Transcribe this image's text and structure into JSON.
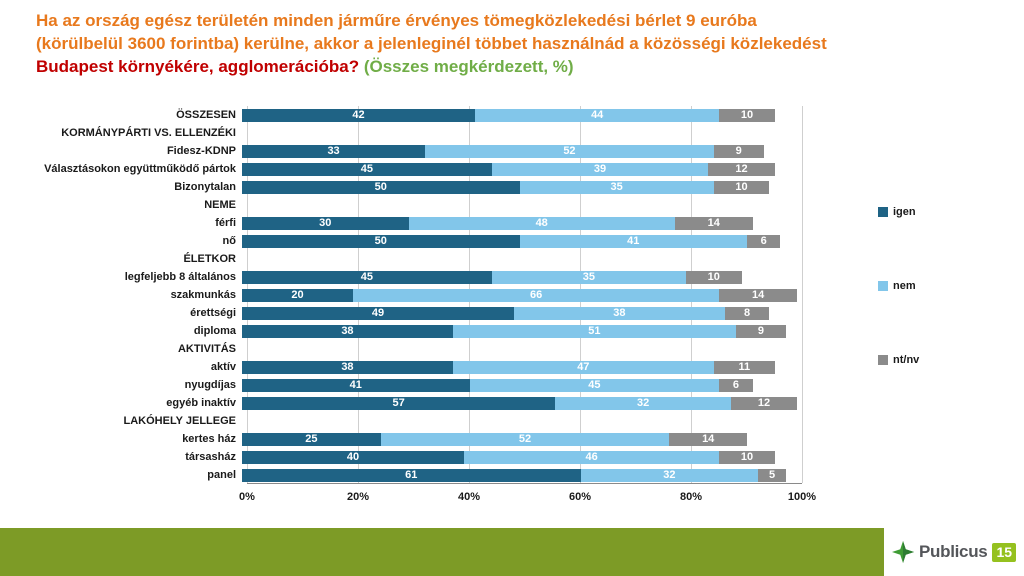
{
  "title": {
    "line1": "Ha az ország egész területén minden járműre érvényes tömegközlekedési bérlet 9 euróba",
    "line2": "(körülbelül 3600 forintba) kerülne, akkor a jelenleginél többet használnád a közösségi közlekedést",
    "highlight": "Budapest környékére, agglomerációba?",
    "note": " (Összes megkérdezett, %)"
  },
  "colors": {
    "title_orange": "#e8791d",
    "title_red": "#c00000",
    "title_green": "#70ad47",
    "footer_olive": "#7d9b26",
    "logo_green": "#95c11f"
  },
  "chart_data": {
    "type": "bar",
    "orientation": "horizontal",
    "stacked": true,
    "grid": true,
    "legend_position": "right",
    "xlim": [
      0,
      100
    ],
    "x_ticks": [
      "0%",
      "20%",
      "40%",
      "60%",
      "80%",
      "100%"
    ],
    "series_names": [
      "igen",
      "nem",
      "nt/nv"
    ],
    "series_colors": [
      "#1f6385",
      "#82c6ea",
      "#8b8b8b"
    ],
    "rows": [
      {
        "label": "ÖSSZESEN",
        "header": false,
        "values": [
          42,
          44,
          10
        ]
      },
      {
        "label": "KORMÁNYPÁRTI VS. ELLENZÉKI",
        "header": true
      },
      {
        "label": "Fidesz-KDNP",
        "header": false,
        "values": [
          33,
          52,
          9
        ]
      },
      {
        "label": "Választásokon együttműködő pártok",
        "header": false,
        "values": [
          45,
          39,
          12
        ]
      },
      {
        "label": "Bizonytalan",
        "header": false,
        "values": [
          50,
          35,
          10
        ]
      },
      {
        "label": "NEME",
        "header": true
      },
      {
        "label": "férfi",
        "header": false,
        "values": [
          30,
          48,
          14
        ]
      },
      {
        "label": "nő",
        "header": false,
        "values": [
          50,
          41,
          6
        ]
      },
      {
        "label": "ÉLETKOR",
        "header": true
      },
      {
        "label": "legfeljebb 8 általános",
        "header": false,
        "values": [
          45,
          35,
          10
        ]
      },
      {
        "label": "szakmunkás",
        "header": false,
        "values": [
          20,
          66,
          14
        ]
      },
      {
        "label": "érettségi",
        "header": false,
        "values": [
          49,
          38,
          8
        ]
      },
      {
        "label": "diploma",
        "header": false,
        "values": [
          38,
          51,
          9
        ]
      },
      {
        "label": "AKTIVITÁS",
        "header": true
      },
      {
        "label": "aktív",
        "header": false,
        "values": [
          38,
          47,
          11
        ]
      },
      {
        "label": "nyugdíjas",
        "header": false,
        "values": [
          41,
          45,
          6
        ]
      },
      {
        "label": "egyéb inaktív",
        "header": false,
        "values": [
          57,
          32,
          12
        ]
      },
      {
        "label": "LAKÓHELY JELLEGE",
        "header": true
      },
      {
        "label": "kertes ház",
        "header": false,
        "values": [
          25,
          52,
          14
        ]
      },
      {
        "label": "társasház",
        "header": false,
        "values": [
          40,
          46,
          10
        ]
      },
      {
        "label": "panel",
        "header": false,
        "values": [
          61,
          32,
          5
        ]
      }
    ]
  },
  "footer": {
    "logo_text": "Publicus",
    "logo_number": "15"
  }
}
